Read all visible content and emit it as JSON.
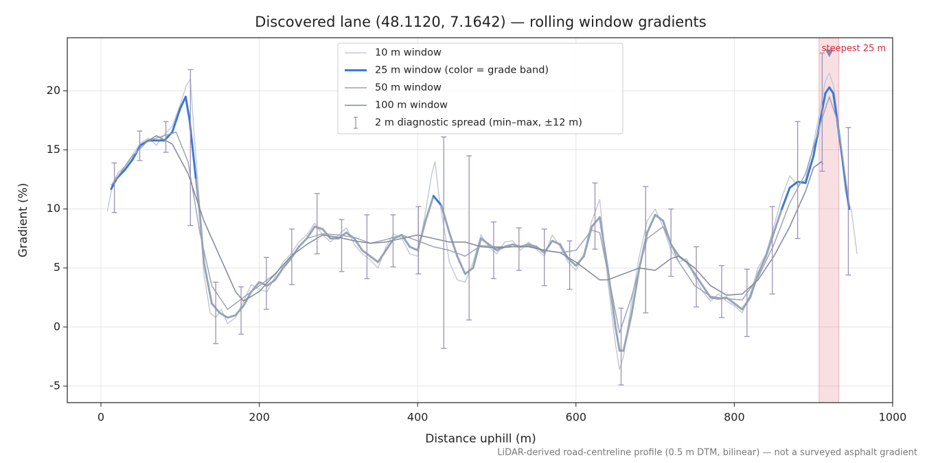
{
  "chart_data": {
    "type": "line",
    "title": "Discovered lane (48.1120, 7.1642) — rolling window gradients",
    "xlabel": "Distance uphill (m)",
    "ylabel": "Gradient (%)",
    "footnote": "LiDAR-derived road-centreline profile (0.5 m DTM, bilinear) — not a surveyed asphalt gradient",
    "xlim": [
      -42.5,
      1000
    ],
    "ylim": [
      -6.4,
      24.5
    ],
    "xticks": [
      0,
      200,
      400,
      600,
      800,
      1000
    ],
    "yticks": [
      -5,
      0,
      5,
      10,
      15,
      20
    ],
    "grid": true,
    "legend": "upper center",
    "series": [
      {
        "name": "10 m window",
        "color": "#c3cad6",
        "width": 1.5,
        "x": [
          8,
          15,
          22,
          30,
          40,
          50,
          60,
          70,
          80,
          90,
          100,
          108,
          113,
          118,
          125,
          130,
          138,
          145,
          152,
          160,
          170,
          180,
          190,
          200,
          210,
          220,
          230,
          240,
          250,
          260,
          270,
          280,
          290,
          300,
          310,
          320,
          330,
          340,
          350,
          360,
          370,
          380,
          390,
          400,
          410,
          418,
          422,
          428,
          435,
          440,
          450,
          460,
          470,
          480,
          490,
          500,
          510,
          520,
          530,
          540,
          550,
          560,
          570,
          580,
          590,
          600,
          610,
          620,
          630,
          640,
          650,
          655,
          660,
          670,
          680,
          690,
          700,
          710,
          720,
          730,
          740,
          750,
          760,
          770,
          780,
          790,
          800,
          810,
          820,
          830,
          840,
          850,
          860,
          870,
          880,
          890,
          900,
          910,
          915,
          920,
          925,
          930,
          940,
          948,
          955
        ],
        "values": [
          9.8,
          12.2,
          13.1,
          13.6,
          14.6,
          15.6,
          16.0,
          15.4,
          16.3,
          17.0,
          18.8,
          20.5,
          21.0,
          16.0,
          10.0,
          4.5,
          1.2,
          0.8,
          1.5,
          0.3,
          0.8,
          2.2,
          3.6,
          3.2,
          3.0,
          4.3,
          5.5,
          6.2,
          7.2,
          7.8,
          8.8,
          7.8,
          7.2,
          7.8,
          8.4,
          7.0,
          6.2,
          5.7,
          5.0,
          6.8,
          7.9,
          7.5,
          6.2,
          6.0,
          9.8,
          13.0,
          14.0,
          10.5,
          7.8,
          5.5,
          4.0,
          3.8,
          5.5,
          7.8,
          6.8,
          6.2,
          7.2,
          7.3,
          6.5,
          7.2,
          6.6,
          6.0,
          7.8,
          6.8,
          5.5,
          4.8,
          6.2,
          9.0,
          10.8,
          4.0,
          -1.5,
          -3.6,
          -2.5,
          2.0,
          6.0,
          9.0,
          10.0,
          8.5,
          6.5,
          5.5,
          5.8,
          4.2,
          3.0,
          2.2,
          2.8,
          2.2,
          1.8,
          1.2,
          2.8,
          5.0,
          6.2,
          8.5,
          11.0,
          12.8,
          12.0,
          12.5,
          15.5,
          19.0,
          20.8,
          21.5,
          20.5,
          18.0,
          11.5,
          9.8,
          6.2
        ]
      },
      {
        "name": "25 m window (color = grade band)",
        "color": "#3a78d6",
        "base_color": "#98a4b6",
        "width": 3,
        "bands": [
          {
            "from": 10,
            "color": "#3a78d6"
          },
          {
            "from": 20,
            "color": "#e88f1a"
          }
        ],
        "x": [
          13,
          20,
          30,
          40,
          50,
          60,
          70,
          80,
          90,
          100,
          107,
          112,
          120,
          125,
          130,
          140,
          150,
          160,
          170,
          180,
          190,
          200,
          210,
          220,
          230,
          240,
          250,
          260,
          270,
          280,
          290,
          300,
          310,
          320,
          330,
          340,
          350,
          360,
          370,
          380,
          390,
          400,
          410,
          420,
          430,
          440,
          450,
          460,
          470,
          480,
          490,
          500,
          510,
          520,
          530,
          540,
          550,
          560,
          570,
          580,
          590,
          600,
          610,
          620,
          630,
          640,
          650,
          655,
          660,
          670,
          680,
          690,
          700,
          710,
          720,
          730,
          740,
          750,
          760,
          770,
          780,
          790,
          800,
          810,
          820,
          830,
          840,
          850,
          860,
          870,
          880,
          890,
          900,
          910,
          915,
          920,
          925,
          930,
          940,
          945
        ],
        "values": [
          11.7,
          12.6,
          13.3,
          14.2,
          15.4,
          15.8,
          15.8,
          15.8,
          16.5,
          18.5,
          19.5,
          17.5,
          12.5,
          9.5,
          5.5,
          2.0,
          1.2,
          0.8,
          1.0,
          1.8,
          3.0,
          3.8,
          3.5,
          4.0,
          5.0,
          5.8,
          6.8,
          7.5,
          8.5,
          8.3,
          7.5,
          7.5,
          8.0,
          7.5,
          6.5,
          6.0,
          5.5,
          6.5,
          7.5,
          7.8,
          6.8,
          6.5,
          9.0,
          11.1,
          10.3,
          8.0,
          6.0,
          4.5,
          5.0,
          7.5,
          7.0,
          6.5,
          6.8,
          7.0,
          6.8,
          7.0,
          6.8,
          6.3,
          7.3,
          7.0,
          5.8,
          5.2,
          6.0,
          8.5,
          9.3,
          5.0,
          0.0,
          -2.0,
          -2.0,
          1.0,
          5.0,
          8.0,
          9.5,
          9.0,
          7.0,
          6.0,
          5.5,
          4.5,
          3.5,
          2.5,
          2.4,
          2.5,
          2.0,
          1.5,
          2.5,
          4.5,
          6.0,
          8.0,
          10.0,
          11.8,
          12.3,
          12.2,
          14.5,
          18.0,
          19.8,
          20.3,
          19.8,
          17.5,
          12.5,
          10.0
        ]
      },
      {
        "name": "50 m window",
        "color": "#9aa4b6",
        "width": 1.5,
        "x": [
          13,
          40,
          60,
          80,
          95,
          110,
          125,
          140,
          160,
          180,
          200,
          220,
          240,
          260,
          280,
          300,
          320,
          340,
          360,
          380,
          400,
          420,
          440,
          460,
          480,
          500,
          520,
          540,
          560,
          580,
          600,
          620,
          630,
          645,
          655,
          670,
          690,
          710,
          730,
          750,
          770,
          790,
          810,
          830,
          850,
          870,
          890,
          910,
          920,
          930,
          945
        ],
        "values": [
          12.0,
          14.5,
          15.8,
          16.2,
          16.5,
          14.0,
          8.0,
          3.5,
          1.5,
          2.5,
          3.5,
          4.5,
          6.0,
          7.5,
          7.9,
          7.8,
          7.6,
          7.1,
          7.4,
          7.8,
          7.3,
          6.8,
          6.5,
          6.0,
          6.9,
          6.8,
          6.8,
          6.9,
          6.5,
          6.3,
          6.5,
          8.2,
          8.0,
          3.0,
          -0.5,
          2.5,
          7.5,
          8.5,
          5.5,
          3.5,
          2.6,
          2.4,
          2.3,
          4.2,
          7.0,
          10.5,
          13.0,
          17.5,
          19.5,
          17.5,
          10.5
        ]
      },
      {
        "name": "100 m window",
        "color": "#7f8796",
        "width": 1.5,
        "x": [
          55,
          70,
          90,
          110,
          130,
          150,
          170,
          180,
          200,
          220,
          240,
          260,
          280,
          300,
          320,
          340,
          360,
          380,
          400,
          420,
          440,
          460,
          480,
          500,
          520,
          540,
          560,
          580,
          600,
          620,
          630,
          640,
          660,
          680,
          700,
          720,
          730,
          750,
          770,
          790,
          810,
          830,
          850,
          870,
          890,
          900,
          910,
          912
        ],
        "values": [
          15.6,
          16.2,
          15.5,
          13.0,
          9.0,
          6.0,
          3.0,
          2.2,
          3.0,
          4.5,
          6.0,
          7.0,
          7.8,
          7.6,
          7.3,
          7.1,
          7.2,
          7.5,
          7.8,
          7.5,
          7.2,
          7.2,
          6.8,
          6.7,
          6.8,
          6.8,
          6.5,
          6.3,
          5.5,
          4.5,
          4.0,
          4.0,
          4.5,
          5.0,
          4.8,
          5.8,
          6.0,
          5.0,
          3.5,
          2.7,
          2.8,
          4.0,
          6.0,
          8.5,
          11.5,
          13.5,
          14.0,
          13.8
        ]
      }
    ],
    "errorbars": {
      "name": "2 m diagnostic spread (min–max, ±12 m)",
      "color": "#9a90b8",
      "x": [
        17,
        49,
        82,
        113,
        145,
        177,
        209,
        241,
        273,
        304,
        336,
        369,
        401,
        433,
        465,
        496,
        528,
        560,
        592,
        624,
        657,
        688,
        720,
        752,
        784,
        816,
        848,
        880,
        911,
        944
      ],
      "low": [
        9.7,
        14.1,
        14.8,
        8.6,
        -1.4,
        -0.6,
        1.5,
        3.6,
        6.2,
        4.7,
        4.1,
        5.1,
        4.5,
        -1.8,
        0.6,
        4.1,
        4.8,
        3.5,
        3.2,
        6.6,
        -4.9,
        1.2,
        4.3,
        1.7,
        0.8,
        -0.8,
        2.8,
        7.5,
        13.2,
        4.4
      ],
      "high": [
        13.9,
        16.6,
        17.4,
        21.8,
        3.8,
        3.4,
        5.9,
        8.3,
        11.3,
        9.1,
        9.5,
        9.5,
        10.2,
        16.1,
        14.5,
        8.9,
        8.4,
        8.3,
        7.3,
        12.2,
        1.6,
        11.9,
        10.0,
        6.8,
        5.2,
        4.9,
        10.2,
        17.4,
        23.2,
        16.9
      ]
    },
    "steepest": {
      "label": "steepest 25 m",
      "x0": 907,
      "x1": 932,
      "x": 920,
      "y": 23.2,
      "color": "#d2283a"
    }
  }
}
